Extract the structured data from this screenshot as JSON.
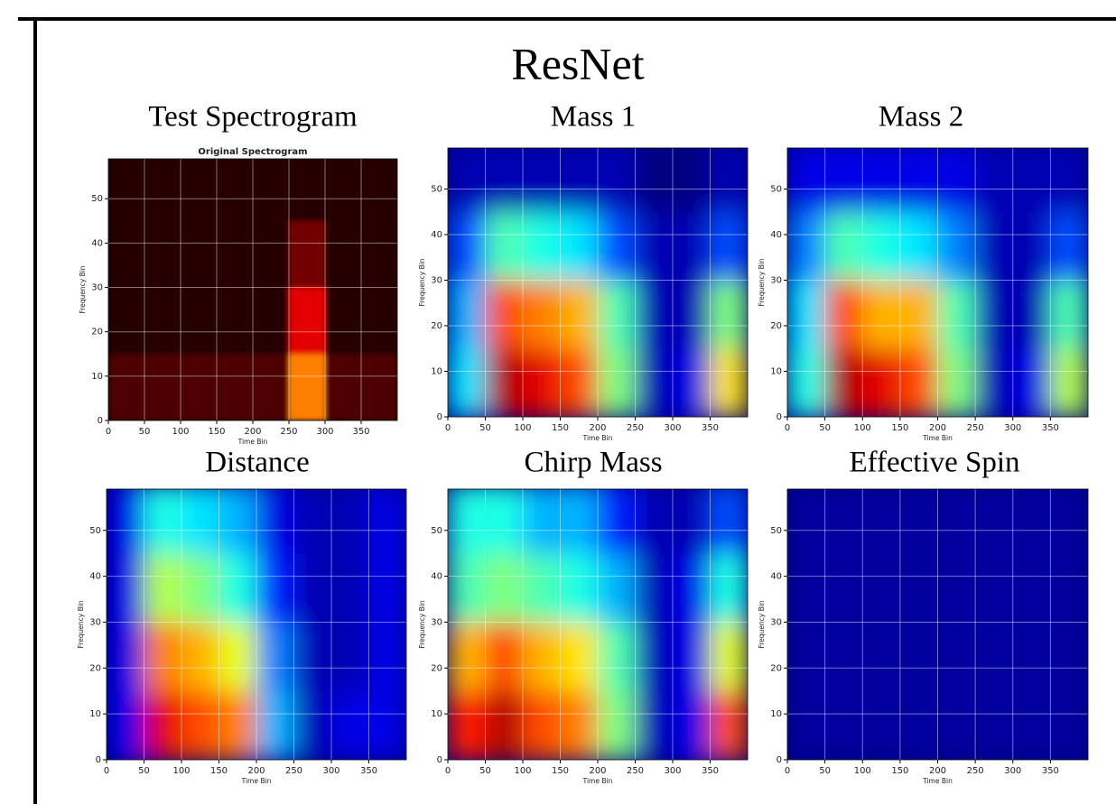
{
  "figure_title": "ResNet",
  "chart_data": [
    {
      "type": "heatmap",
      "title": "Test Spectrogram",
      "subtitle": "Original Spectrogram",
      "cmap": "hot",
      "x_label": "Time Bin",
      "y_label": "Frequency Bin",
      "xlim": [
        0,
        400
      ],
      "ylim": [
        0,
        59
      ],
      "xticks": [
        0,
        50,
        100,
        150,
        200,
        250,
        300,
        350
      ],
      "yticks": [
        0,
        10,
        20,
        30,
        40,
        50
      ],
      "grid": true,
      "xbins": [
        0,
        50,
        100,
        150,
        200,
        250,
        300,
        350,
        400
      ],
      "ybins": [
        0,
        15,
        30,
        45,
        60
      ],
      "z": [
        [
          0.1,
          0.1,
          0.1,
          0.1,
          0.1,
          0.5,
          0.1,
          0.1
        ],
        [
          0.05,
          0.05,
          0.05,
          0.05,
          0.05,
          0.3,
          0.05,
          0.05
        ],
        [
          0.05,
          0.05,
          0.05,
          0.05,
          0.05,
          0.15,
          0.05,
          0.05
        ],
        [
          0.05,
          0.05,
          0.05,
          0.05,
          0.05,
          0.05,
          0.05,
          0.05
        ]
      ]
    },
    {
      "type": "heatmap",
      "title": "Mass 1",
      "cmap": "jet",
      "x_label": "Time Bin",
      "y_label": "Frequency Bin",
      "xlim": [
        0,
        400
      ],
      "ylim": [
        0,
        59
      ],
      "xticks": [
        0,
        50,
        100,
        150,
        200,
        250,
        300,
        350
      ],
      "yticks": [
        0,
        10,
        20,
        30,
        40,
        50
      ],
      "grid": true,
      "xbins": [
        0,
        50,
        100,
        150,
        200,
        250,
        300,
        350,
        400
      ],
      "ybins": [
        0,
        15,
        30,
        45,
        60
      ],
      "z": [
        [
          0.35,
          0.95,
          0.9,
          0.8,
          0.5,
          0.05,
          0.1,
          0.65
        ],
        [
          0.3,
          0.8,
          0.75,
          0.7,
          0.45,
          0.05,
          0.05,
          0.5
        ],
        [
          0.2,
          0.45,
          0.4,
          0.35,
          0.2,
          0.05,
          0.05,
          0.2
        ],
        [
          0.05,
          0.05,
          0.05,
          0.05,
          0.05,
          0,
          0,
          0.05
        ]
      ]
    },
    {
      "type": "heatmap",
      "title": "Mass 2",
      "cmap": "jet",
      "x_label": "Time Bin",
      "y_label": "Frequency Bin",
      "xlim": [
        0,
        400
      ],
      "ylim": [
        0,
        59
      ],
      "xticks": [
        0,
        50,
        100,
        150,
        200,
        250,
        300,
        350
      ],
      "yticks": [
        0,
        10,
        20,
        30,
        40,
        50
      ],
      "grid": true,
      "xbins": [
        0,
        50,
        100,
        150,
        200,
        250,
        300,
        350,
        400
      ],
      "ybins": [
        0,
        15,
        30,
        45,
        60
      ],
      "z": [
        [
          0.4,
          0.95,
          0.9,
          0.8,
          0.5,
          0.05,
          0.1,
          0.55
        ],
        [
          0.35,
          0.8,
          0.7,
          0.7,
          0.45,
          0.05,
          0.05,
          0.45
        ],
        [
          0.25,
          0.45,
          0.4,
          0.35,
          0.25,
          0.05,
          0.05,
          0.2
        ],
        [
          0.1,
          0.1,
          0.1,
          0.1,
          0.1,
          0.05,
          0.05,
          0.05
        ]
      ]
    },
    {
      "type": "heatmap",
      "title": "Distance",
      "cmap": "jet",
      "x_label": "Time Bin",
      "y_label": "Frequency Bin",
      "xlim": [
        0,
        400
      ],
      "ylim": [
        0,
        59
      ],
      "xticks": [
        0,
        50,
        100,
        150,
        200,
        250,
        300,
        350
      ],
      "yticks": [
        0,
        10,
        20,
        30,
        40,
        50
      ],
      "grid": true,
      "xbins": [
        0,
        50,
        100,
        150,
        200,
        250,
        300,
        350,
        400
      ],
      "ybins": [
        0,
        15,
        30,
        45,
        60
      ],
      "z": [
        [
          0.1,
          0.9,
          0.8,
          0.75,
          0.3,
          0.05,
          0.1,
          0.1
        ],
        [
          0.1,
          0.75,
          0.7,
          0.6,
          0.25,
          0.05,
          0.05,
          0.1
        ],
        [
          0.1,
          0.55,
          0.5,
          0.4,
          0.15,
          0.05,
          0.05,
          0.1
        ],
        [
          0.1,
          0.4,
          0.35,
          0.3,
          0.1,
          0.05,
          0.05,
          0.1
        ]
      ]
    },
    {
      "type": "heatmap",
      "title": "Chirp Mass",
      "cmap": "jet",
      "x_label": "Time Bin",
      "y_label": "Frequency Bin",
      "xlim": [
        0,
        400
      ],
      "ylim": [
        0,
        59
      ],
      "xticks": [
        0,
        50,
        100,
        150,
        200,
        250,
        300,
        350
      ],
      "yticks": [
        0,
        10,
        20,
        30,
        40,
        50
      ],
      "grid": true,
      "xbins": [
        0,
        50,
        100,
        150,
        200,
        250,
        300,
        350,
        400
      ],
      "ybins": [
        0,
        15,
        30,
        45,
        60
      ],
      "z": [
        [
          0.85,
          0.95,
          0.8,
          0.75,
          0.5,
          0.05,
          0.1,
          0.8
        ],
        [
          0.7,
          0.8,
          0.7,
          0.65,
          0.45,
          0.05,
          0.1,
          0.6
        ],
        [
          0.45,
          0.5,
          0.45,
          0.4,
          0.3,
          0.05,
          0.1,
          0.4
        ],
        [
          0.4,
          0.4,
          0.3,
          0.3,
          0.15,
          0.05,
          0.05,
          0.2
        ]
      ]
    },
    {
      "type": "heatmap",
      "title": "Effective Spin",
      "cmap": "jet",
      "x_label": "Time Bin",
      "y_label": "Frequency Bin",
      "xlim": [
        0,
        400
      ],
      "ylim": [
        0,
        59
      ],
      "xticks": [
        0,
        50,
        100,
        150,
        200,
        250,
        300,
        350
      ],
      "yticks": [
        0,
        10,
        20,
        30,
        40,
        50
      ],
      "grid": true,
      "xbins": [
        0,
        50,
        100,
        150,
        200,
        250,
        300,
        350,
        400
      ],
      "ybins": [
        0,
        15,
        30,
        45,
        60
      ],
      "z": [
        [
          0.03,
          0.03,
          0.03,
          0.03,
          0.03,
          0.03,
          0.03,
          0.03
        ],
        [
          0.03,
          0.03,
          0.03,
          0.03,
          0.03,
          0.03,
          0.03,
          0.03
        ],
        [
          0.03,
          0.03,
          0.03,
          0.03,
          0.03,
          0.03,
          0.03,
          0.03
        ],
        [
          0.03,
          0.03,
          0.03,
          0.03,
          0.03,
          0.03,
          0.03,
          0.03
        ]
      ]
    }
  ]
}
